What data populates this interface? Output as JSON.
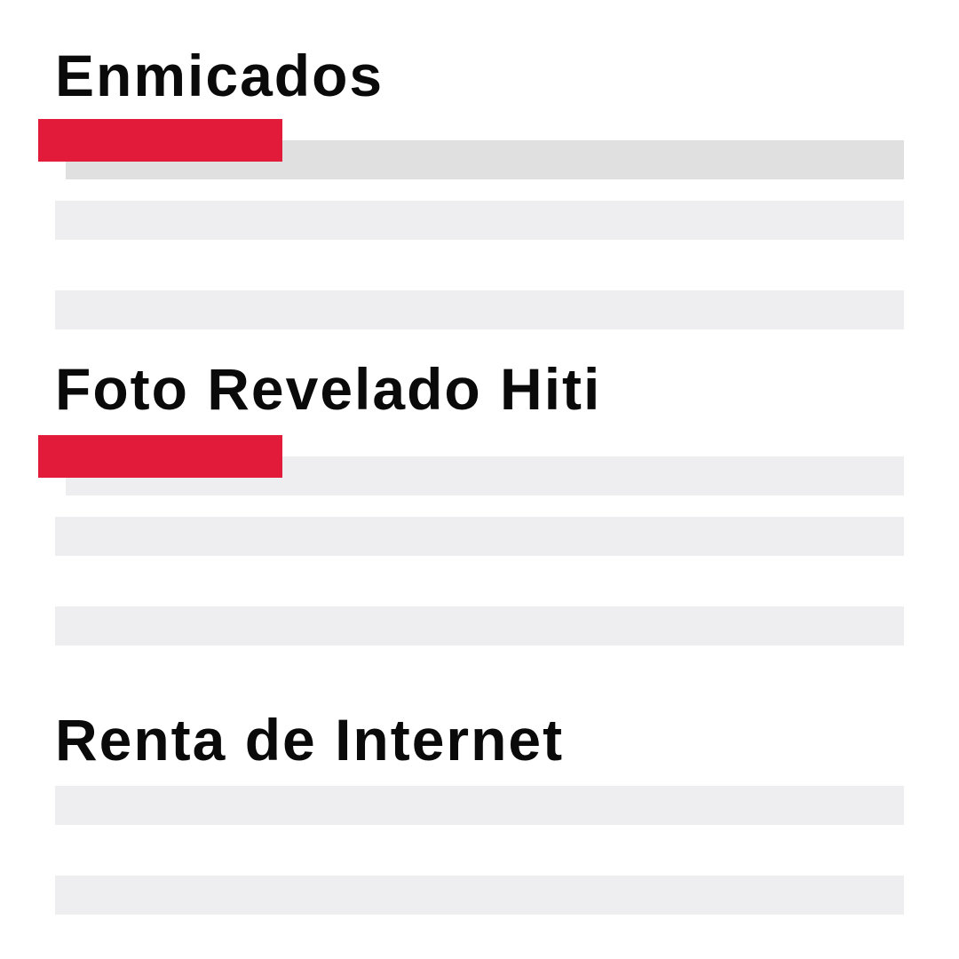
{
  "sections": [
    {
      "title": "Enmicados"
    },
    {
      "title": "Foto Revelado Hiti"
    },
    {
      "title": "Renta de Internet"
    }
  ],
  "colors": {
    "accent": "#e31b3a",
    "placeholder_dark": "#e0e0e0",
    "placeholder_light": "#eeeef0",
    "text": "#0a0a0a",
    "background": "#ffffff"
  }
}
